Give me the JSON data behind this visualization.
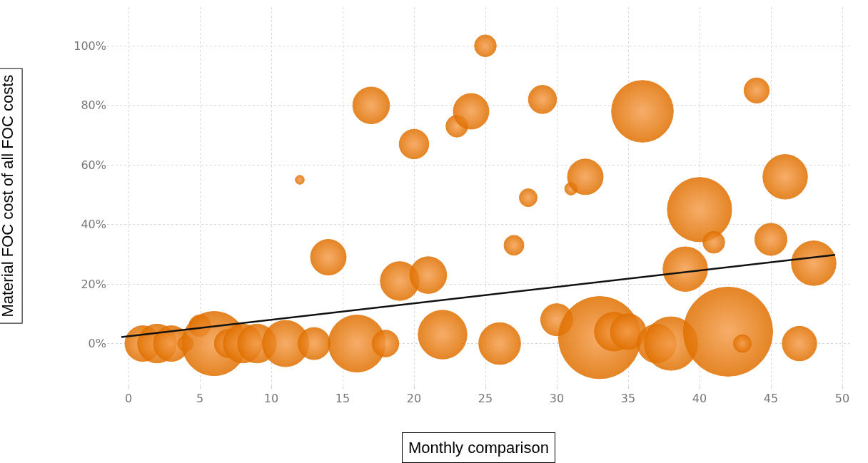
{
  "chart_data": {
    "type": "bubble",
    "xlabel": "Monthly comparison",
    "ylabel": "Material FOC cost of all FOC costs",
    "x": [
      1,
      2,
      3,
      4,
      5,
      6,
      7,
      8,
      9,
      11,
      12,
      13,
      14,
      16,
      17,
      18,
      19,
      20,
      21,
      22,
      23,
      24,
      25,
      26,
      27,
      28,
      29,
      30,
      31,
      32,
      33,
      34,
      35,
      36,
      37,
      38,
      39,
      40,
      41,
      42,
      43,
      44,
      45,
      46,
      47,
      48
    ],
    "series": [
      {
        "color": "#e07000",
        "marker": "circle",
        "values": [
          0,
          0,
          0,
          0,
          6,
          0,
          0,
          0,
          0,
          0,
          55,
          0,
          29,
          0,
          80,
          0,
          21,
          67,
          23,
          3,
          73,
          78,
          100,
          0,
          33,
          49,
          82,
          8,
          52,
          56,
          2,
          4,
          4,
          78,
          0,
          0,
          25,
          45,
          34,
          4,
          0,
          85,
          35,
          56,
          0,
          27
        ],
        "sizes": [
          0.16,
          0.19,
          0.16,
          0.03,
          0.06,
          0.52,
          0.1,
          0.19,
          0.19,
          0.27,
          0.01,
          0.13,
          0.16,
          0.41,
          0.17,
          0.09,
          0.19,
          0.11,
          0.17,
          0.3,
          0.06,
          0.16,
          0.06,
          0.22,
          0.05,
          0.04,
          0.1,
          0.13,
          0.02,
          0.16,
          0.85,
          0.19,
          0.16,
          0.48,
          0.19,
          0.36,
          0.25,
          0.52,
          0.06,
          1,
          0.04,
          0.08,
          0.13,
          0.25,
          0.15,
          0.25
        ]
      },
      {
        "type": "line",
        "color": "#111111",
        "x": [
          -0.5,
          49.5
        ],
        "values": [
          2.2,
          29.8
        ]
      }
    ],
    "xlim": [
      -1.5,
      50.5
    ],
    "xticks": [
      0,
      5,
      10,
      15,
      20,
      25,
      30,
      35,
      40,
      45,
      50
    ],
    "ylim": [
      -14,
      113
    ],
    "yticks": [
      {
        "value": 0,
        "label": "0%"
      },
      {
        "value": 20,
        "label": "20%"
      },
      {
        "value": 40,
        "label": "40%"
      },
      {
        "value": 60,
        "label": "60%"
      },
      {
        "value": 80,
        "label": "80%"
      },
      {
        "value": 100,
        "label": "100%"
      }
    ],
    "grid": true,
    "legend": false
  }
}
